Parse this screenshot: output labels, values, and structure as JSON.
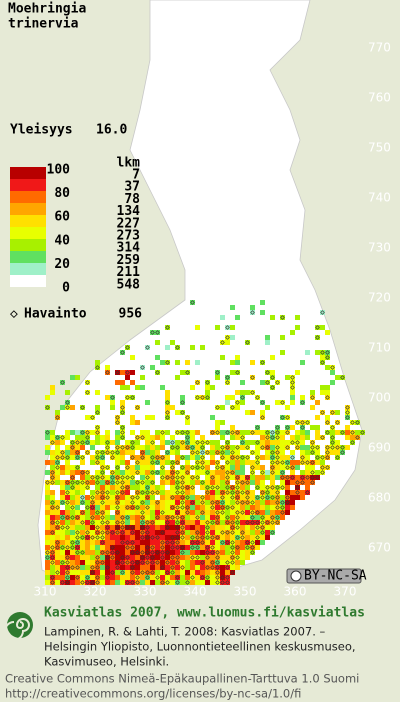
{
  "map": {
    "title_lines": [
      "Moehringia",
      "trinervia"
    ],
    "frequency": {
      "label": "Yleisyys",
      "value": "16.0"
    },
    "legend": {
      "header": "lkm",
      "levels": [
        100,
        80,
        60,
        40,
        20,
        0
      ],
      "counts": [
        7,
        37,
        78,
        134,
        227,
        273,
        314,
        259,
        211,
        548
      ],
      "colors": [
        "#b80000",
        "#f01818",
        "#ff6a00",
        "#ffa500",
        "#ffe000",
        "#e8ff00",
        "#a8f000",
        "#60e060",
        "#9ff0c8",
        "#ffffff"
      ]
    },
    "observations": {
      "label": "Havainto",
      "value": 956
    },
    "northing_ticks": [
      770,
      760,
      750,
      740,
      730,
      720,
      710,
      700,
      690,
      680,
      670
    ],
    "easting_ticks": [
      310,
      320,
      330,
      340,
      350,
      360,
      370
    ],
    "badge": "BY-NC-SA",
    "footer": {
      "heading": "Kasviatlas 2007, www.luomus.fi/kasviatlas",
      "citation": [
        "Lampinen, R. & Lahti, T. 2008: Kasviatlas 2007. –",
        "Helsingin Yliopisto, Luonnontieteellinen keskusmuseo,",
        "Kasvimuseo, Helsinki."
      ],
      "license": [
        "Creative Commons Nimeä-Epäkaupallinen-Tarttuva 1.0 Suomi",
        "http://creativecommons.org/licenses/by-nc-sa/1.0/fi"
      ]
    }
  }
}
